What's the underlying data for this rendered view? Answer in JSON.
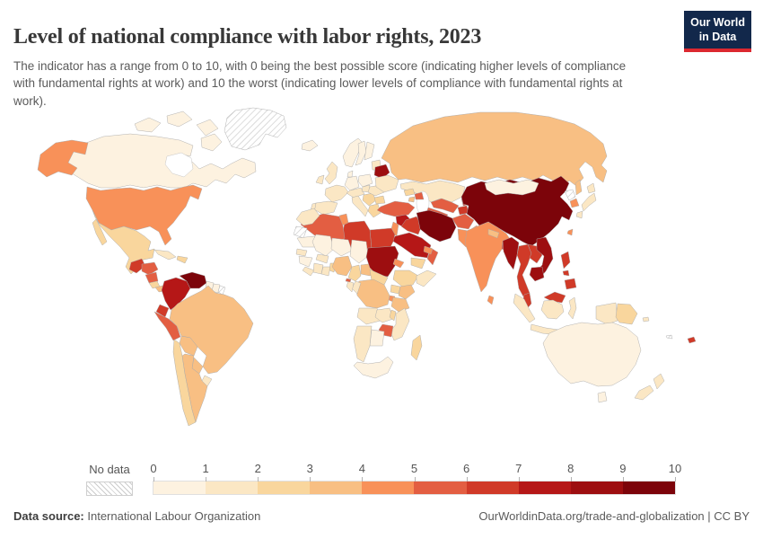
{
  "header": {
    "title": "Level of national compliance with labor rights, 2023",
    "subtitle": "The indicator has a range from 0 to 10, with 0 being the best possible score (indicating higher levels of compliance with fundamental rights at work) and 10 the worst (indicating lower levels of compliance with fundamental rights at work).",
    "logo": {
      "line1": "Our World",
      "line2": "in Data",
      "bg_color": "#12284B",
      "accent_color": "#DC2830"
    }
  },
  "footer": {
    "source_label": "Data source:",
    "source_value": "International Labour Organization",
    "link_text": "OurWorldinData.org/trade-and-globalization",
    "separator": " | ",
    "license": "CC BY"
  },
  "chart_data": {
    "type": "choropleth-map",
    "title": "Level of national compliance with labor rights, 2023",
    "year": 2023,
    "scale_note": "0 = best compliance, 10 = worst compliance",
    "legend": {
      "no_data_label": "No data",
      "ticks": [
        0,
        1,
        2,
        3,
        4,
        5,
        6,
        7,
        8,
        9,
        10
      ],
      "bin_colors": [
        "#FDF2E0",
        "#FBE7C4",
        "#F9D69D",
        "#F8BF83",
        "#F89159",
        "#E35E42",
        "#D03A28",
        "#B51717",
        "#9D0E10",
        "#7C040A"
      ]
    },
    "regions": {
      "canada": 0.5,
      "usa": 4.5,
      "greenland": null,
      "mexico": 2.5,
      "guatemala": 6.5,
      "honduras": 5.5,
      "nicaragua": 5.5,
      "costa_rica": 2.5,
      "panama": 3.5,
      "cuba": 1.5,
      "hispaniola": 2.5,
      "colombia": 7.5,
      "venezuela": 9.5,
      "guyana": 0.5,
      "suriname": 0.5,
      "french_guiana": null,
      "ecuador": 6.5,
      "peru": 5.5,
      "brazil": 3.5,
      "bolivia": 3.5,
      "paraguay": 3.5,
      "uruguay": 1.5,
      "chile": 2.5,
      "argentina": 3.5,
      "iceland": 0.5,
      "uk": 1.5,
      "ireland": 1.5,
      "norway": 0.5,
      "sweden": 0.5,
      "finland": 0.5,
      "denmark": 0.5,
      "baltics": 1.5,
      "france": 1.5,
      "spain": 1.5,
      "portugal": 1.5,
      "germany": 0.5,
      "poland": 0.5,
      "central_europe": 1.5,
      "italy": 1.5,
      "balkans": 2.5,
      "romania": 1.5,
      "bulgaria": 2.5,
      "greece": 2.5,
      "hungary": 1.5,
      "belarus": 8.5,
      "ukraine": 1.5,
      "russia": 3.5,
      "kazakhstan": 1.5,
      "uzbekistan": 5.5,
      "turkmenistan": 5.5,
      "kyrgyzstan": 6.5,
      "tajikistan": 6.5,
      "georgia": 2.5,
      "azerbaijan": 5.5,
      "armenia": 3.5,
      "turkey": 5.5,
      "syria": 7.5,
      "levant": 4.5,
      "iraq": 6.5,
      "iran": 9.5,
      "afghanistan": 5.5,
      "pakistan": 4.5,
      "saudi": 7.5,
      "yemen": 2.5,
      "oman": 5.5,
      "uae": 4.5,
      "egypt": 6.5,
      "libya": 6.5,
      "tunisia": 4.5,
      "algeria": 5.5,
      "morocco": 1.5,
      "w_sahara": null,
      "mauritania": 0.5,
      "mali": 0.5,
      "niger": 0.5,
      "chad": 0.5,
      "senegal": 1.5,
      "guinea": 0.5,
      "sierra_liberia": 1.5,
      "cote": 1.5,
      "ghana": 1.5,
      "burkina": 1.5,
      "togo_benin": 2.5,
      "nigeria": 3.5,
      "cameroon": 2.5,
      "car": 3.5,
      "sudan": 8.5,
      "south_sudan": 2.5,
      "eritrea": 4.5,
      "ethiopia": 2.5,
      "somalia": 1.5,
      "uganda": 2.5,
      "kenya": 3.5,
      "rwanda_burundi": 4.5,
      "tanzania": 3.5,
      "drc": 3.5,
      "congo": 1.5,
      "gabon": 1.5,
      "eq_guinea": 5.5,
      "angola": 1.5,
      "zambia": 1.5,
      "malawi": 2.5,
      "mozambique": 1.5,
      "zimbabwe": 5.5,
      "botswana": 0.5,
      "namibia": 1.5,
      "south_africa": 0.5,
      "madagascar": 2.5,
      "india": 4.5,
      "nepal": 3.5,
      "bangladesh": 6.5,
      "sri_lanka": 4.5,
      "china": 9.5,
      "mongolia": 0.5,
      "north_korea": null,
      "south_korea": 4.5,
      "japan": 1.5,
      "taiwan": 4.5,
      "myanmar": 8.5,
      "thailand": 6.5,
      "laos": 6.5,
      "vietnam": 8.5,
      "cambodia": 8.5,
      "malaysia": 6.5,
      "indonesia": 1.5,
      "png": 2.5,
      "philippines": 6.5,
      "australia": 0.5,
      "new_zealand": 1.5,
      "fiji": 6.5,
      "solomon_islands": 1.5,
      "new_caledonia": null
    }
  }
}
